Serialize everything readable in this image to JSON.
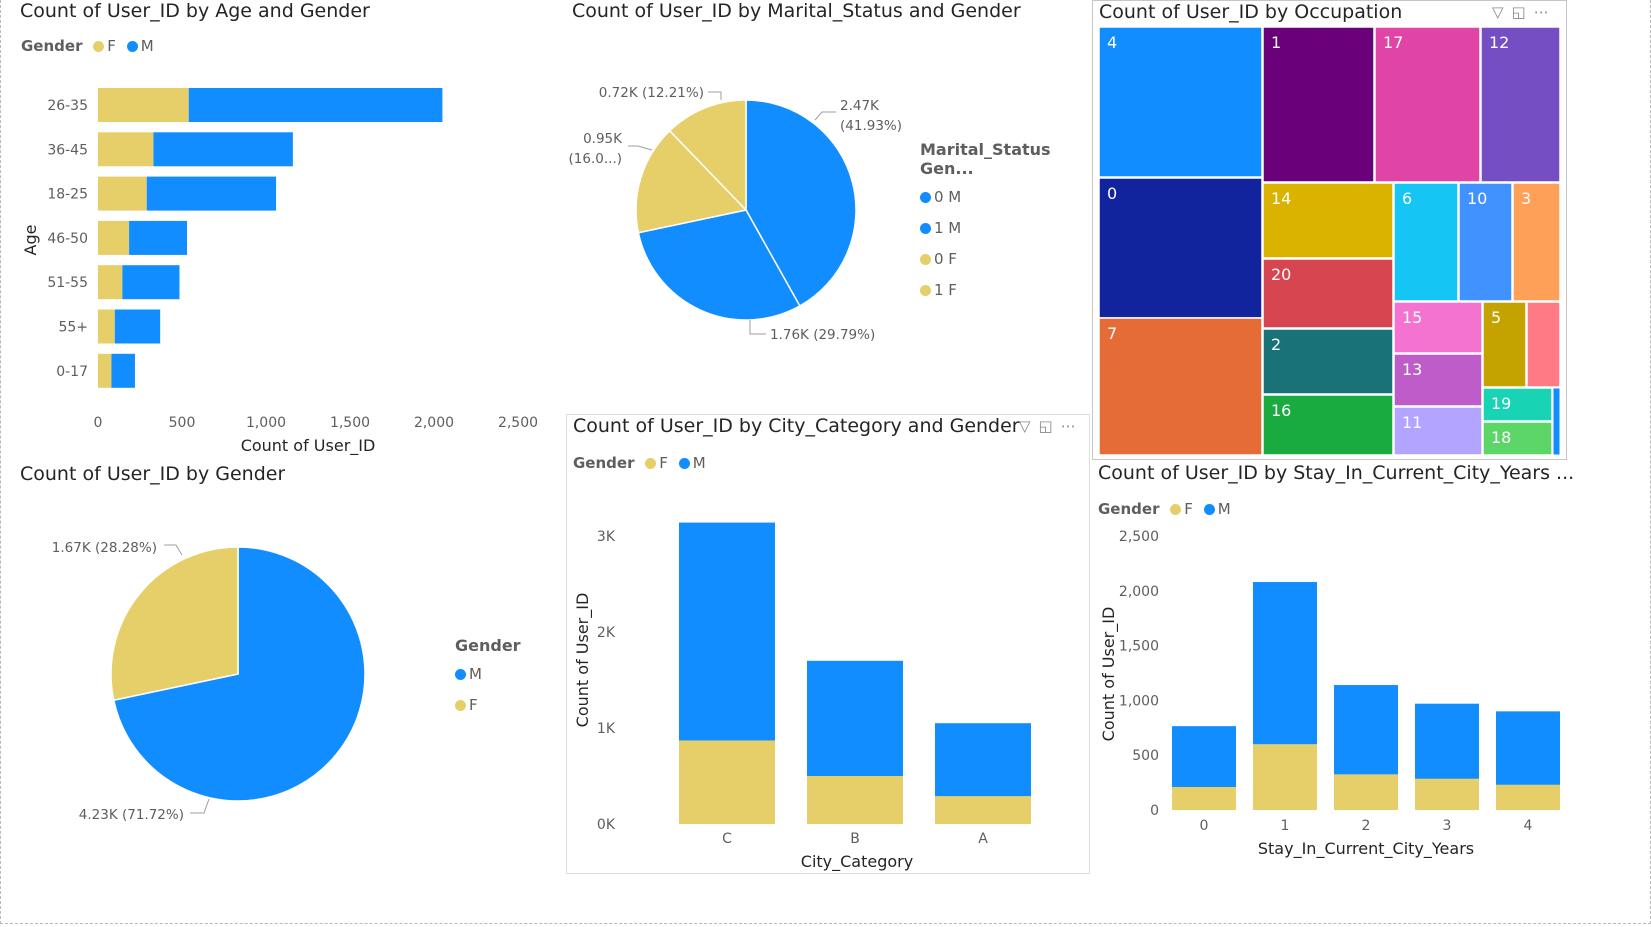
{
  "colors": {
    "F": "#E6CF68",
    "M": "#118DFF"
  },
  "icons": [
    "filter-icon",
    "focus-mode-icon",
    "more-options-icon"
  ],
  "age_chart": {
    "title": "Count of User_ID by Age and Gender",
    "legend_title": "Gender",
    "legend_items": [
      "F",
      "M"
    ],
    "chart_data": {
      "type": "bar",
      "orientation": "horizontal",
      "stacked": true,
      "categories": [
        "26-35",
        "36-45",
        "18-25",
        "46-50",
        "51-55",
        "55+",
        "0-17"
      ],
      "series": [
        {
          "name": "F",
          "values": [
            540,
            330,
            290,
            185,
            145,
            100,
            80
          ]
        },
        {
          "name": "M",
          "values": [
            1510,
            830,
            770,
            345,
            340,
            270,
            140
          ]
        }
      ],
      "xlabel": "Count of User_ID",
      "ylabel": "Age",
      "xlim": [
        0,
        2500
      ],
      "x_ticks": [
        "0",
        "500",
        "1,000",
        "1,500",
        "2,000",
        "2,500"
      ]
    }
  },
  "marital_chart": {
    "title": "Count of User_ID by Marital_Status and Gender",
    "legend_title": "Marital_Status Gen...",
    "legend_items": [
      "0 M",
      "1 M",
      "0 F",
      "1 F"
    ],
    "chart_data": {
      "type": "pie",
      "slices": [
        {
          "name": "0 M",
          "value": 2470,
          "percent": 41.93,
          "label": "2.47K",
          "label2": "(41.93%)",
          "color": "#118DFF"
        },
        {
          "name": "1 M",
          "value": 1760,
          "percent": 29.79,
          "label": "1.76K (29.79%)",
          "color": "#118DFF"
        },
        {
          "name": "0 F",
          "value": 950,
          "percent": 16.07,
          "label": "0.95K",
          "label2": "(16.0...)",
          "color": "#E6CF68"
        },
        {
          "name": "1 F",
          "value": 720,
          "percent": 12.21,
          "label": "0.72K (12.21%)",
          "color": "#E6CF68"
        }
      ]
    }
  },
  "occupation_chart": {
    "title": "Count of User_ID by Occupation",
    "chart_data": {
      "type": "treemap",
      "categories": [
        "4",
        "0",
        "7",
        "1",
        "17",
        "12",
        "14",
        "20",
        "2",
        "16",
        "6",
        "10",
        "3",
        "15",
        "13",
        "11",
        "5",
        "19",
        "18"
      ]
    }
  },
  "gender_chart": {
    "title": "Count of User_ID by Gender",
    "legend_title": "Gender",
    "legend_items": [
      "M",
      "F"
    ],
    "chart_data": {
      "type": "pie",
      "slices": [
        {
          "name": "M",
          "value": 4230,
          "percent": 71.72,
          "label": "4.23K (71.72%)",
          "color": "#118DFF"
        },
        {
          "name": "F",
          "value": 1670,
          "percent": 28.28,
          "label": "1.67K (28.28%)",
          "color": "#E6CF68"
        }
      ]
    }
  },
  "city_chart": {
    "title": "Count of User_ID by City_Category and Gender",
    "legend_title": "Gender",
    "legend_items": [
      "F",
      "M"
    ],
    "chart_data": {
      "type": "bar",
      "stacked": true,
      "categories": [
        "C",
        "B",
        "A"
      ],
      "series": [
        {
          "name": "F",
          "values": [
            870,
            500,
            290
          ]
        },
        {
          "name": "M",
          "values": [
            2270,
            1200,
            760
          ]
        }
      ],
      "xlabel": "City_Category",
      "ylabel": "Count of User_ID",
      "ylim": [
        0,
        3000
      ],
      "y_ticks": [
        "0K",
        "1K",
        "2K",
        "3K"
      ]
    }
  },
  "stay_chart": {
    "title": "Count of User_ID by Stay_In_Current_City_Years ...",
    "legend_title": "Gender",
    "legend_items": [
      "F",
      "M"
    ],
    "chart_data": {
      "type": "bar",
      "stacked": true,
      "categories": [
        "0",
        "1",
        "2",
        "3",
        "4"
      ],
      "series": [
        {
          "name": "F",
          "values": [
            210,
            600,
            325,
            285,
            230
          ]
        },
        {
          "name": "M",
          "values": [
            555,
            1480,
            815,
            685,
            670
          ]
        }
      ],
      "xlabel": "Stay_In_Current_City_Years",
      "ylabel": "Count of User_ID",
      "ylim": [
        0,
        2500
      ],
      "y_ticks": [
        "0",
        "500",
        "1,000",
        "1,500",
        "2,000",
        "2,500"
      ]
    }
  }
}
